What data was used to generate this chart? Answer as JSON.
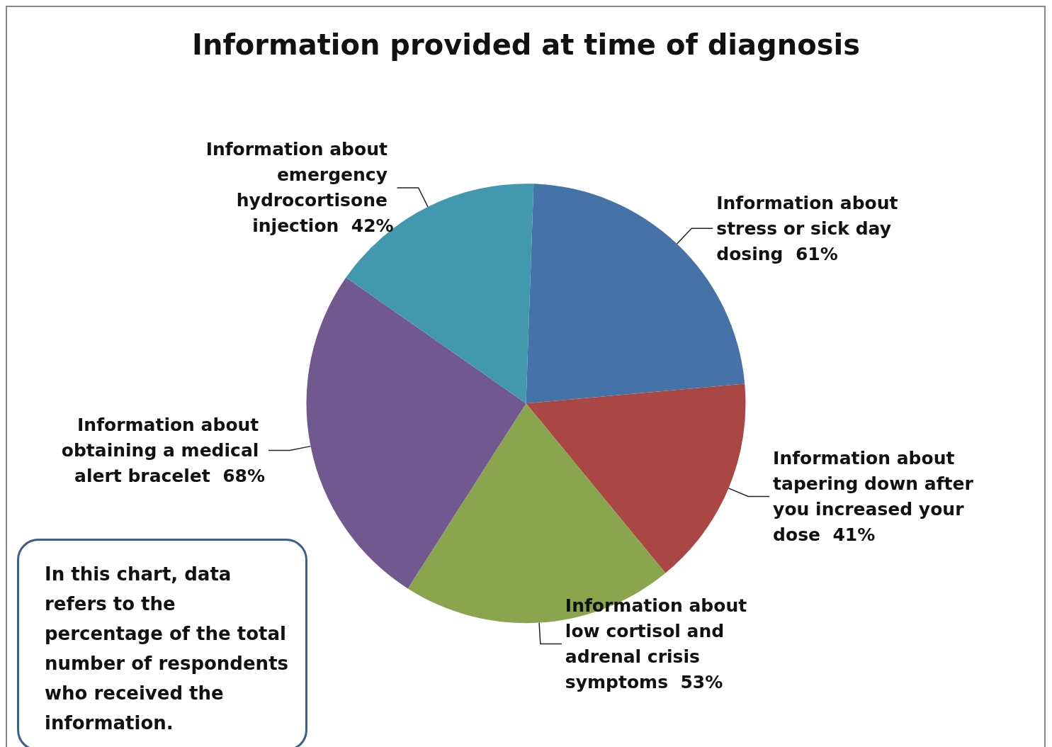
{
  "chart_data": {
    "type": "pie",
    "title": "Information provided at time of diagnosis",
    "categories": [
      "Information about stress or sick day dosing",
      "Information about tapering down after you increased your dose",
      "Information about low cortisol and adrenal crisis symptoms",
      "Information about obtaining a medical alert bracelet",
      "Information about emergency hydrocortisone injection"
    ],
    "values": [
      61,
      41,
      53,
      68,
      42
    ],
    "value_labels": [
      "61%",
      "41%",
      "53%",
      "68%",
      "42%"
    ],
    "colors": [
      "#4572a7",
      "#aa4643",
      "#89a54e",
      "#71588f",
      "#4198af"
    ],
    "legend": false,
    "annotations": [
      "In this chart, data refers to the percentage of the total number of respondents who received the information."
    ]
  }
}
